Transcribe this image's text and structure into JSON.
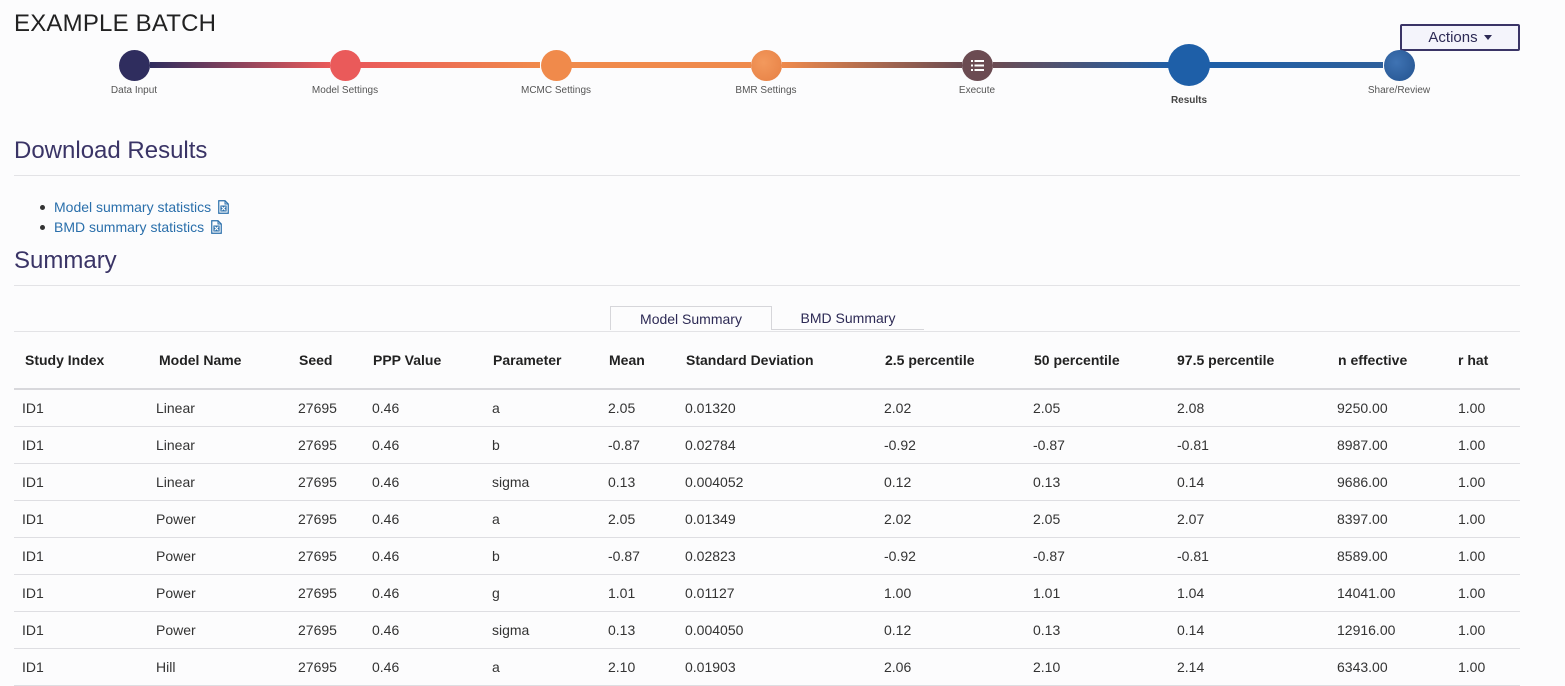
{
  "app": {
    "title": "EXAMPLE BATCH"
  },
  "actions": {
    "label": "Actions"
  },
  "stepper": {
    "steps": [
      {
        "label": "Data Input",
        "color": "#2f2d5e"
      },
      {
        "label": "Model Settings",
        "color": "#ea5a5a"
      },
      {
        "label": "MCMC Settings",
        "color": "#f08a4b"
      },
      {
        "label": "BMR Settings",
        "color": "#ef8a4c"
      },
      {
        "label": "Execute",
        "color": "#6b4b52",
        "icon": "list-icon"
      },
      {
        "label": "Results",
        "color": "#1e5fa8",
        "active": true
      },
      {
        "label": "Share/Review",
        "color": "#2e5f9b"
      }
    ]
  },
  "download": {
    "title": "Download Results",
    "links": [
      {
        "label": "Model summary statistics",
        "icon": "excel-file-icon"
      },
      {
        "label": "BMD summary statistics",
        "icon": "excel-file-icon"
      }
    ]
  },
  "summary": {
    "title": "Summary",
    "tabs": [
      {
        "label": "Model Summary",
        "active": true
      },
      {
        "label": "BMD Summary",
        "active": false
      }
    ],
    "columns": [
      "Study Index",
      "Model Name",
      "Seed",
      "PPP Value",
      "Parameter",
      "Mean",
      "Standard Deviation",
      "2.5 percentile",
      "50 percentile",
      "97.5 percentile",
      "n effective",
      "r hat"
    ],
    "rows": [
      [
        "ID1",
        "Linear",
        "27695",
        "0.46",
        "a",
        "2.05",
        "0.01320",
        "2.02",
        "2.05",
        "2.08",
        "9250.00",
        "1.00"
      ],
      [
        "ID1",
        "Linear",
        "27695",
        "0.46",
        "b",
        "-0.87",
        "0.02784",
        "-0.92",
        "-0.87",
        "-0.81",
        "8987.00",
        "1.00"
      ],
      [
        "ID1",
        "Linear",
        "27695",
        "0.46",
        "sigma",
        "0.13",
        "0.004052",
        "0.12",
        "0.13",
        "0.14",
        "9686.00",
        "1.00"
      ],
      [
        "ID1",
        "Power",
        "27695",
        "0.46",
        "a",
        "2.05",
        "0.01349",
        "2.02",
        "2.05",
        "2.07",
        "8397.00",
        "1.00"
      ],
      [
        "ID1",
        "Power",
        "27695",
        "0.46",
        "b",
        "-0.87",
        "0.02823",
        "-0.92",
        "-0.87",
        "-0.81",
        "8589.00",
        "1.00"
      ],
      [
        "ID1",
        "Power",
        "27695",
        "0.46",
        "g",
        "1.01",
        "0.01127",
        "1.00",
        "1.01",
        "1.04",
        "14041.00",
        "1.00"
      ],
      [
        "ID1",
        "Power",
        "27695",
        "0.46",
        "sigma",
        "0.13",
        "0.004050",
        "0.12",
        "0.13",
        "0.14",
        "12916.00",
        "1.00"
      ],
      [
        "ID1",
        "Hill",
        "27695",
        "0.46",
        "a",
        "2.10",
        "0.01903",
        "2.06",
        "2.10",
        "2.14",
        "6343.00",
        "1.00"
      ]
    ]
  }
}
